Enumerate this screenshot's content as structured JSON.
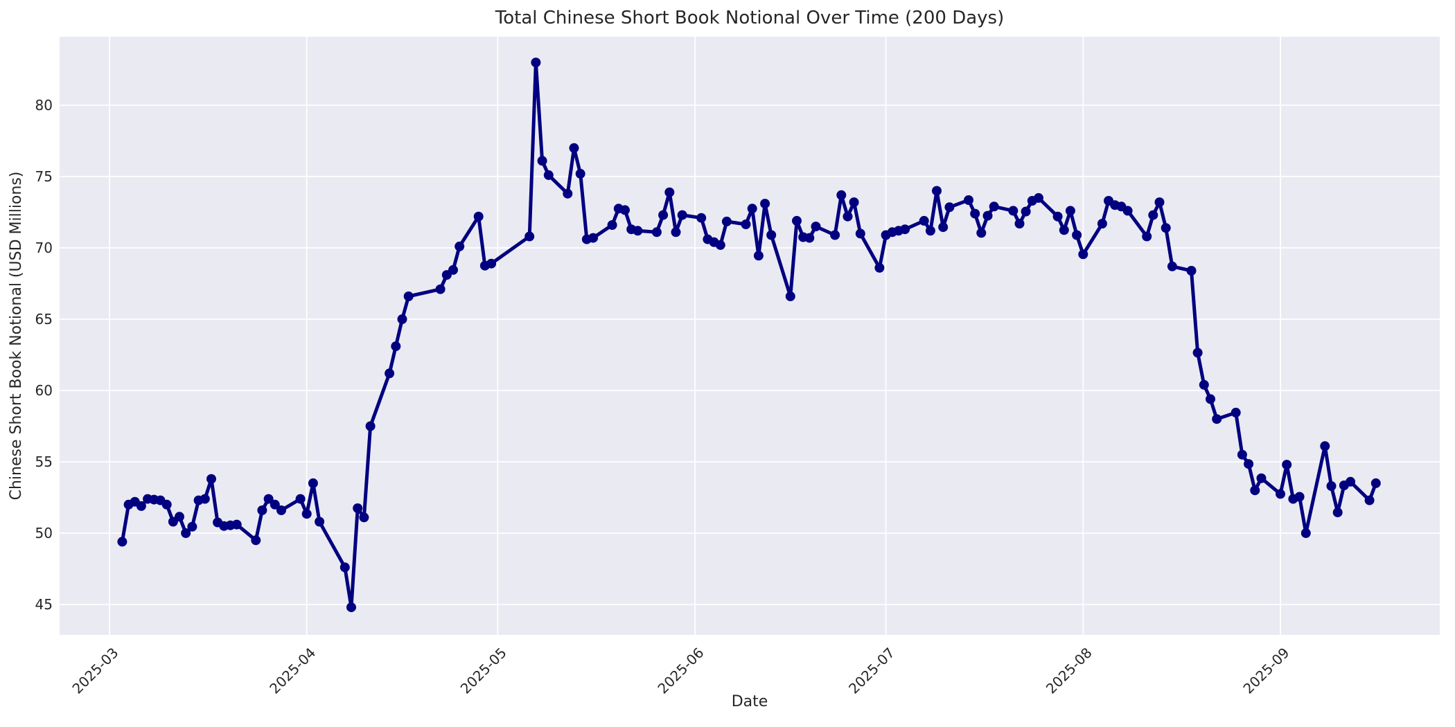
{
  "figure": {
    "title": "Total Chinese Short Book Notional Over Time (200 Days)",
    "xlabel": "Date",
    "ylabel": "Chinese Short Book Notional (USD Millions)"
  },
  "colors": {
    "figure_bg": "#ffffff",
    "plot_bg": "#eaeaf2",
    "grid": "#ffffff",
    "line": "#000080",
    "marker": "#000080",
    "text": "#262626"
  },
  "chart_data": {
    "type": "line",
    "title": "Total Chinese Short Book Notional Over Time (200 Days)",
    "xlabel": "Date",
    "ylabel": "Chinese Short Book Notional (USD Millions)",
    "grid": true,
    "legend_position": "none",
    "marker_style": "circle",
    "x_tick_labels": [
      "2025-03",
      "2025-04",
      "2025-05",
      "2025-06",
      "2025-07",
      "2025-08",
      "2025-09"
    ],
    "y_ticks": [
      45,
      50,
      55,
      60,
      65,
      70,
      75,
      80
    ],
    "ylim": [
      42.9,
      84.8
    ],
    "xlim": [
      "2025-02-21",
      "2025-09-26"
    ],
    "series": [
      {
        "name": "Total Chinese Short Book Notional (USD Millions)",
        "x": [
          "2025-03-03",
          "2025-03-04",
          "2025-03-05",
          "2025-03-06",
          "2025-03-07",
          "2025-03-08",
          "2025-03-09",
          "2025-03-10",
          "2025-03-11",
          "2025-03-12",
          "2025-03-13",
          "2025-03-14",
          "2025-03-15",
          "2025-03-16",
          "2025-03-17",
          "2025-03-18",
          "2025-03-19",
          "2025-03-20",
          "2025-03-21",
          "2025-03-24",
          "2025-03-25",
          "2025-03-26",
          "2025-03-27",
          "2025-03-28",
          "2025-03-31",
          "2025-04-01",
          "2025-04-02",
          "2025-04-03",
          "2025-04-07",
          "2025-04-08",
          "2025-04-09",
          "2025-04-10",
          "2025-04-11",
          "2025-04-14",
          "2025-04-15",
          "2025-04-16",
          "2025-04-17",
          "2025-04-22",
          "2025-04-23",
          "2025-04-24",
          "2025-04-25",
          "2025-04-28",
          "2025-04-29",
          "2025-04-30",
          "2025-05-06",
          "2025-05-07",
          "2025-05-08",
          "2025-05-09",
          "2025-05-12",
          "2025-05-13",
          "2025-05-14",
          "2025-05-15",
          "2025-05-16",
          "2025-05-19",
          "2025-05-20",
          "2025-05-21",
          "2025-05-22",
          "2025-05-23",
          "2025-05-26",
          "2025-05-27",
          "2025-05-28",
          "2025-05-29",
          "2025-05-30",
          "2025-06-02",
          "2025-06-03",
          "2025-06-04",
          "2025-06-05",
          "2025-06-06",
          "2025-06-09",
          "2025-06-10",
          "2025-06-11",
          "2025-06-12",
          "2025-06-13",
          "2025-06-16",
          "2025-06-17",
          "2025-06-18",
          "2025-06-19",
          "2025-06-20",
          "2025-06-23",
          "2025-06-24",
          "2025-06-25",
          "2025-06-26",
          "2025-06-27",
          "2025-06-30",
          "2025-07-01",
          "2025-07-02",
          "2025-07-03",
          "2025-07-04",
          "2025-07-07",
          "2025-07-08",
          "2025-07-09",
          "2025-07-10",
          "2025-07-11",
          "2025-07-14",
          "2025-07-15",
          "2025-07-16",
          "2025-07-17",
          "2025-07-18",
          "2025-07-21",
          "2025-07-22",
          "2025-07-23",
          "2025-07-24",
          "2025-07-25",
          "2025-07-28",
          "2025-07-29",
          "2025-07-30",
          "2025-07-31",
          "2025-08-01",
          "2025-08-04",
          "2025-08-05",
          "2025-08-06",
          "2025-08-07",
          "2025-08-08",
          "2025-08-11",
          "2025-08-12",
          "2025-08-13",
          "2025-08-14",
          "2025-08-15",
          "2025-08-18",
          "2025-08-19",
          "2025-08-20",
          "2025-08-21",
          "2025-08-22",
          "2025-08-25",
          "2025-08-26",
          "2025-08-27",
          "2025-08-28",
          "2025-08-29",
          "2025-09-01",
          "2025-09-02",
          "2025-09-03",
          "2025-09-04",
          "2025-09-05",
          "2025-09-08",
          "2025-09-09",
          "2025-09-10",
          "2025-09-11",
          "2025-09-12",
          "2025-09-15",
          "2025-09-16"
        ],
        "y": [
          49.4,
          52.0,
          52.2,
          51.9,
          52.4,
          52.35,
          52.3,
          52.0,
          50.8,
          51.15,
          50.0,
          50.45,
          52.3,
          52.4,
          53.8,
          50.75,
          50.5,
          50.55,
          50.6,
          49.5,
          51.6,
          52.4,
          52.0,
          51.6,
          52.4,
          51.35,
          53.5,
          50.8,
          47.6,
          44.8,
          51.75,
          51.1,
          57.5,
          61.2,
          63.1,
          65.0,
          66.6,
          67.1,
          68.1,
          68.45,
          70.1,
          72.2,
          68.75,
          68.9,
          70.8,
          83.0,
          76.1,
          75.1,
          73.8,
          77.0,
          75.2,
          70.6,
          70.7,
          71.6,
          72.75,
          72.65,
          71.3,
          71.2,
          71.1,
          72.3,
          73.9,
          71.1,
          72.3,
          72.1,
          70.6,
          70.4,
          70.2,
          71.85,
          71.65,
          72.75,
          69.45,
          73.1,
          70.9,
          66.6,
          71.9,
          70.75,
          70.7,
          71.5,
          70.9,
          73.7,
          72.2,
          73.2,
          71.0,
          68.6,
          70.9,
          71.1,
          71.2,
          71.3,
          71.9,
          71.2,
          74.0,
          71.45,
          72.85,
          73.35,
          72.4,
          71.05,
          72.25,
          72.9,
          72.6,
          71.7,
          72.55,
          73.3,
          73.5,
          72.2,
          71.25,
          72.6,
          70.9,
          69.55,
          71.7,
          73.3,
          73.0,
          72.9,
          72.6,
          70.8,
          72.3,
          73.2,
          71.4,
          68.7,
          68.4,
          62.65,
          60.4,
          59.4,
          58.0,
          58.45,
          55.5,
          54.85,
          53.0,
          53.85,
          52.75,
          54.8,
          52.4,
          52.55,
          50.0,
          56.1,
          53.3,
          51.45,
          53.35,
          53.6,
          52.3,
          53.5
        ]
      }
    ]
  }
}
